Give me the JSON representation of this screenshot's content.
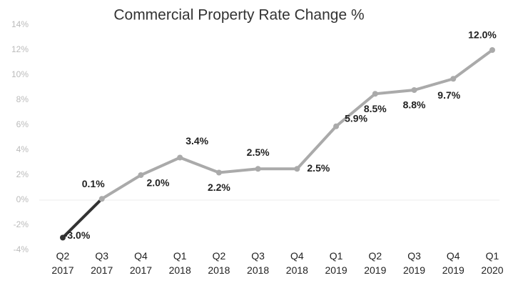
{
  "chart_data": {
    "type": "line",
    "title": "Commercial Property Rate Change %",
    "categories": [
      "Q2 2017",
      "Q3 2017",
      "Q4 2017",
      "Q1 2018",
      "Q2 2018",
      "Q3 2018",
      "Q4 2018",
      "Q1 2019",
      "Q2 2019",
      "Q3 2019",
      "Q4 2019",
      "Q1 2020"
    ],
    "series": [
      {
        "name": "Rate Change",
        "color": "#aaaaaa",
        "negative_color": "#333333",
        "values": [
          -3.0,
          0.1,
          2.0,
          3.4,
          2.2,
          2.5,
          2.5,
          5.9,
          8.5,
          8.8,
          9.7,
          12.0
        ],
        "value_labels": [
          "-3.0%",
          "0.1%",
          "2.0%",
          "3.4%",
          "2.2%",
          "2.5%",
          "2.5%",
          "5.9%",
          "8.5%",
          "8.8%",
          "9.7%",
          "12.0%"
        ]
      }
    ],
    "ylim": [
      -4,
      14
    ],
    "yticks": [
      {
        "value": -4,
        "label": "-4%"
      },
      {
        "value": -2,
        "label": "-2%"
      },
      {
        "value": 0,
        "label": "0%"
      },
      {
        "value": 2,
        "label": "2%"
      },
      {
        "value": 4,
        "label": "4%"
      },
      {
        "value": 6,
        "label": "6%"
      },
      {
        "value": 8,
        "label": "8%"
      },
      {
        "value": 10,
        "label": "10%"
      },
      {
        "value": 12,
        "label": "12%"
      },
      {
        "value": 14,
        "label": "14%"
      }
    ],
    "zero_line": true
  }
}
